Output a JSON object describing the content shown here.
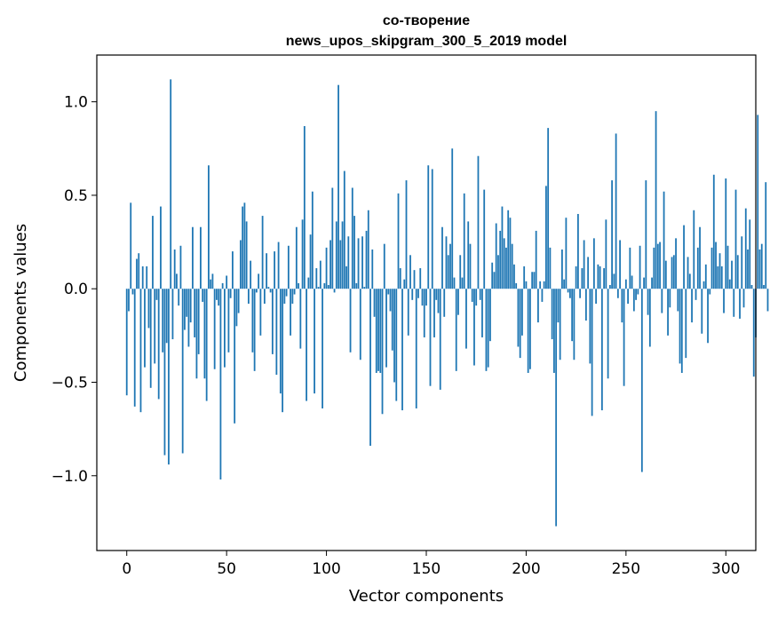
{
  "chart_data": {
    "type": "bar",
    "title_lines": [
      "со-творение",
      "news_upos_skipgram_300_5_2019 model"
    ],
    "xlabel": "Vector components",
    "ylabel": "Components values",
    "xlim": [
      -15,
      315
    ],
    "ylim": [
      -1.4,
      1.25
    ],
    "xticks": [
      0,
      50,
      100,
      150,
      200,
      250,
      300
    ],
    "yticks": [
      1.0,
      0.5,
      0.0,
      -0.5,
      -1.0
    ],
    "ytick_labels": [
      "1.0",
      "0.5",
      "0.0",
      "−0.5",
      "−1.0"
    ],
    "bar_color": "#1f77b4",
    "values": [
      -0.57,
      -0.12,
      0.46,
      -0.03,
      -0.63,
      0.16,
      0.19,
      -0.66,
      0.12,
      -0.42,
      0.12,
      -0.21,
      -0.53,
      0.39,
      -0.4,
      -0.06,
      -0.59,
      0.44,
      -0.34,
      -0.89,
      -0.29,
      -0.94,
      1.12,
      -0.27,
      0.21,
      0.08,
      -0.09,
      0.23,
      -0.88,
      -0.22,
      -0.15,
      -0.31,
      -0.18,
      0.33,
      -0.26,
      -0.48,
      -0.35,
      0.33,
      -0.07,
      -0.48,
      -0.6,
      0.66,
      0.05,
      0.08,
      -0.43,
      -0.06,
      -0.09,
      -1.02,
      0.03,
      -0.42,
      0.07,
      -0.34,
      -0.05,
      0.2,
      -0.72,
      -0.2,
      -0.13,
      0.26,
      0.44,
      0.46,
      0.36,
      -0.08,
      0.15,
      -0.34,
      -0.44,
      -0.02,
      0.08,
      -0.25,
      0.39,
      -0.08,
      0.19,
      0.01,
      -0.02,
      -0.35,
      0.2,
      -0.46,
      0.25,
      -0.56,
      -0.66,
      -0.08,
      -0.04,
      0.23,
      -0.25,
      -0.08,
      -0.03,
      0.33,
      0.03,
      -0.32,
      0.37,
      0.87,
      -0.6,
      0.06,
      0.29,
      0.52,
      -0.56,
      0.11,
      0.01,
      0.15,
      -0.64,
      0.03,
      0.22,
      0.02,
      0.26,
      0.54,
      -0.02,
      0.36,
      1.09,
      0.26,
      0.36,
      0.63,
      0.12,
      0.28,
      -0.34,
      0.54,
      0.39,
      0.03,
      0.27,
      -0.38,
      0.28,
      0.01,
      0.31,
      0.42,
      -0.84,
      0.21,
      -0.15,
      -0.45,
      -0.44,
      -0.45,
      -0.67,
      0.24,
      -0.42,
      -0.03,
      -0.12,
      -0.33,
      -0.5,
      -0.6,
      0.51,
      0.11,
      -0.65,
      0.05,
      0.58,
      -0.25,
      0.18,
      -0.06,
      0.1,
      -0.64,
      -0.05,
      0.11,
      -0.09,
      -0.26,
      -0.09,
      0.66,
      -0.52,
      0.64,
      -0.26,
      -0.06,
      -0.13,
      -0.54,
      0.33,
      -0.15,
      0.28,
      0.18,
      0.24,
      0.75,
      0.06,
      -0.44,
      -0.14,
      0.18,
      0.06,
      0.51,
      -0.32,
      0.36,
      0.24,
      -0.07,
      -0.41,
      -0.09,
      0.71,
      -0.06,
      -0.26,
      0.53,
      -0.44,
      -0.42,
      -0.28,
      0.14,
      0.09,
      0.35,
      0.18,
      0.31,
      0.44,
      0.27,
      0.22,
      0.42,
      0.38,
      0.24,
      0.13,
      0.03,
      -0.31,
      -0.37,
      -0.25,
      0.12,
      0.04,
      -0.45,
      -0.43,
      0.09,
      0.09,
      0.31,
      -0.18,
      0.04,
      -0.07,
      0.04,
      0.55,
      0.86,
      0.22,
      -0.27,
      -0.45,
      -1.27,
      -0.18,
      -0.38,
      0.21,
      0.05,
      0.38,
      -0.02,
      -0.05,
      -0.28,
      -0.38,
      0.12,
      0.4,
      -0.05,
      0.11,
      0.26,
      -0.17,
      0.17,
      -0.4,
      -0.68,
      0.27,
      -0.08,
      0.13,
      0.12,
      -0.65,
      0.11,
      0.37,
      -0.48,
      0.02,
      0.58,
      0.08,
      0.83,
      -0.05,
      0.26,
      -0.18,
      -0.52,
      0.05,
      -0.08,
      0.22,
      0.07,
      -0.12,
      -0.06,
      -0.03,
      0.23,
      -0.98,
      0.06,
      0.58,
      -0.14,
      -0.31,
      0.06,
      0.22,
      0.95,
      0.24,
      0.25,
      -0.13,
      0.52,
      0.15,
      -0.25,
      -0.1,
      0.17,
      0.18,
      0.27,
      -0.12,
      -0.4,
      -0.45,
      0.34,
      -0.37,
      0.17,
      0.08,
      -0.18,
      0.42,
      -0.06,
      0.22,
      0.33,
      -0.24,
      0.04,
      0.13,
      -0.29,
      -0.03,
      0.22,
      0.61,
      0.25,
      0.12,
      0.19,
      0.12,
      -0.13,
      0.59,
      0.23,
      0.05,
      0.15,
      -0.15,
      0.53,
      0.18,
      -0.16,
      0.28,
      -0.1,
      0.43,
      0.21,
      0.37,
      0.02,
      -0.47,
      -0.26,
      0.93,
      0.21,
      0.24,
      0.02,
      0.57,
      -0.12
    ]
  }
}
